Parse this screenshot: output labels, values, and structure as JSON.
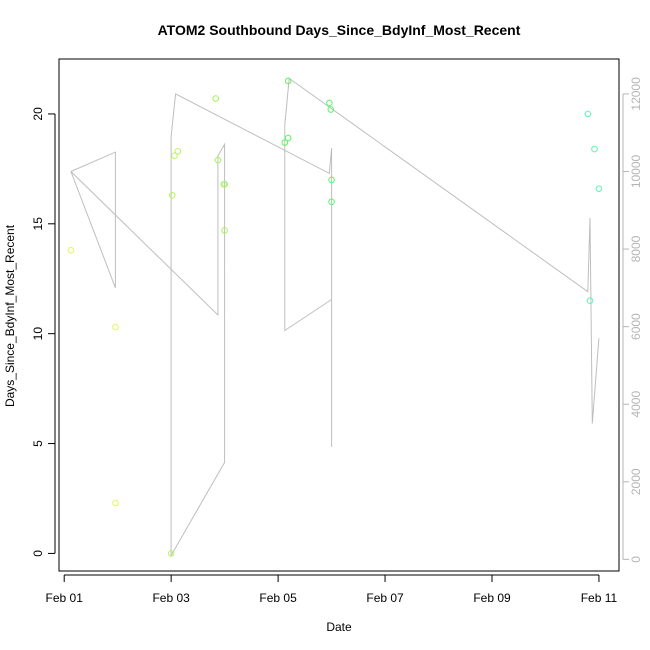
{
  "chart_data": {
    "type": "scatter",
    "title": "ATOM2 Southbound Days_Since_BdyInf_Most_Recent",
    "xlabel": "Date",
    "ylabel": "Days_Since_BdyInf_Most_Recent",
    "y2label": "",
    "x_ticks": [
      "Feb 01",
      "Feb 03",
      "Feb 05",
      "Feb 07",
      "Feb 09",
      "Feb 11"
    ],
    "y_ticks": [
      "0",
      "5",
      "10",
      "15",
      "20"
    ],
    "y2_ticks": [
      "0",
      "2000",
      "4000",
      "6000",
      "8000",
      "10000",
      "12000"
    ],
    "xlim": [
      "2020-01-31T21:40",
      "2020-02-11T09:00"
    ],
    "ylim": [
      -0.8,
      22.5
    ],
    "y2lim": [
      -300,
      12900
    ],
    "grid": false,
    "series": [
      {
        "type": "points",
        "points": [
          {
            "x": "2020-02-01T03:00",
            "y": 13.8,
            "color": "#e6f55a"
          },
          {
            "x": "2020-02-01T23:00",
            "y": 10.3,
            "color": "#e6f55a"
          },
          {
            "x": "2020-02-01T23:00",
            "y": 2.3,
            "color": "#e6f55a"
          },
          {
            "x": "2020-02-03T00:00",
            "y": 0.0,
            "color": "#b9f55a"
          },
          {
            "x": "2020-02-03T00:30",
            "y": 16.3,
            "color": "#b9f55a"
          },
          {
            "x": "2020-02-03T01:30",
            "y": 18.1,
            "color": "#b9f55a"
          },
          {
            "x": "2020-02-03T03:00",
            "y": 18.3,
            "color": "#b9f55a"
          },
          {
            "x": "2020-02-03T20:00",
            "y": 20.7,
            "color": "#a4f55a"
          },
          {
            "x": "2020-02-03T21:00",
            "y": 17.9,
            "color": "#a4f55a"
          },
          {
            "x": "2020-02-03T23:40",
            "y": 16.8,
            "color": "#a4f55a"
          },
          {
            "x": "2020-02-04T00:00",
            "y": 16.8,
            "color": "#a4f55a"
          },
          {
            "x": "2020-02-04T00:00",
            "y": 14.7,
            "color": "#a4f55a"
          },
          {
            "x": "2020-02-05T03:00",
            "y": 18.7,
            "color": "#5af55a"
          },
          {
            "x": "2020-02-05T04:30",
            "y": 21.5,
            "color": "#5af55a"
          },
          {
            "x": "2020-02-05T04:30",
            "y": 18.9,
            "color": "#5af55a"
          },
          {
            "x": "2020-02-05T23:00",
            "y": 20.5,
            "color": "#5af56e"
          },
          {
            "x": "2020-02-05T23:40",
            "y": 20.2,
            "color": "#5af56e"
          },
          {
            "x": "2020-02-06T00:00",
            "y": 17.0,
            "color": "#5af56e"
          },
          {
            "x": "2020-02-06T00:00",
            "y": 16.0,
            "color": "#5af56e"
          },
          {
            "x": "2020-02-10T19:00",
            "y": 20.0,
            "color": "#5af5b9"
          },
          {
            "x": "2020-02-10T20:00",
            "y": 11.5,
            "color": "#5af5b9"
          },
          {
            "x": "2020-02-10T22:00",
            "y": 18.4,
            "color": "#5af5b9"
          },
          {
            "x": "2020-02-11T00:00",
            "y": 16.6,
            "color": "#5af5b9"
          }
        ]
      },
      {
        "type": "line",
        "axis": "right",
        "color": "#bebebe",
        "points": [
          {
            "x": "2020-02-01T03:00",
            "y": 10000
          },
          {
            "x": "2020-02-01T23:00",
            "y": 10500
          },
          {
            "x": "2020-02-01T23:00",
            "y": 7000
          },
          {
            "x": "2020-02-01T23:00",
            "y": 7000
          },
          {
            "x": "2020-02-01T03:00",
            "y": 10000
          },
          {
            "x": "2020-02-03T21:00",
            "y": 6300
          },
          {
            "x": "2020-02-03T21:00",
            "y": 10400
          },
          {
            "x": "2020-02-04T00:00",
            "y": 10700
          },
          {
            "x": "2020-02-04T00:00",
            "y": 2500
          },
          {
            "x": "2020-02-03T00:00",
            "y": 100
          },
          {
            "x": "2020-02-03T00:00",
            "y": 10900
          },
          {
            "x": "2020-02-03T02:00",
            "y": 12000
          },
          {
            "x": "2020-02-05T23:00",
            "y": 9950
          },
          {
            "x": "2020-02-06T00:00",
            "y": 10600
          },
          {
            "x": "2020-02-06T00:00",
            "y": 2900
          },
          {
            "x": "2020-02-06T00:00",
            "y": 6700
          },
          {
            "x": "2020-02-05T03:00",
            "y": 5900
          },
          {
            "x": "2020-02-05T03:00",
            "y": 11200
          },
          {
            "x": "2020-02-05T05:00",
            "y": 12400
          },
          {
            "x": "2020-02-10T19:00",
            "y": 6900
          },
          {
            "x": "2020-02-10T20:00",
            "y": 8800
          },
          {
            "x": "2020-02-10T21:00",
            "y": 3500
          },
          {
            "x": "2020-02-11T00:00",
            "y": 5700
          }
        ]
      }
    ]
  }
}
